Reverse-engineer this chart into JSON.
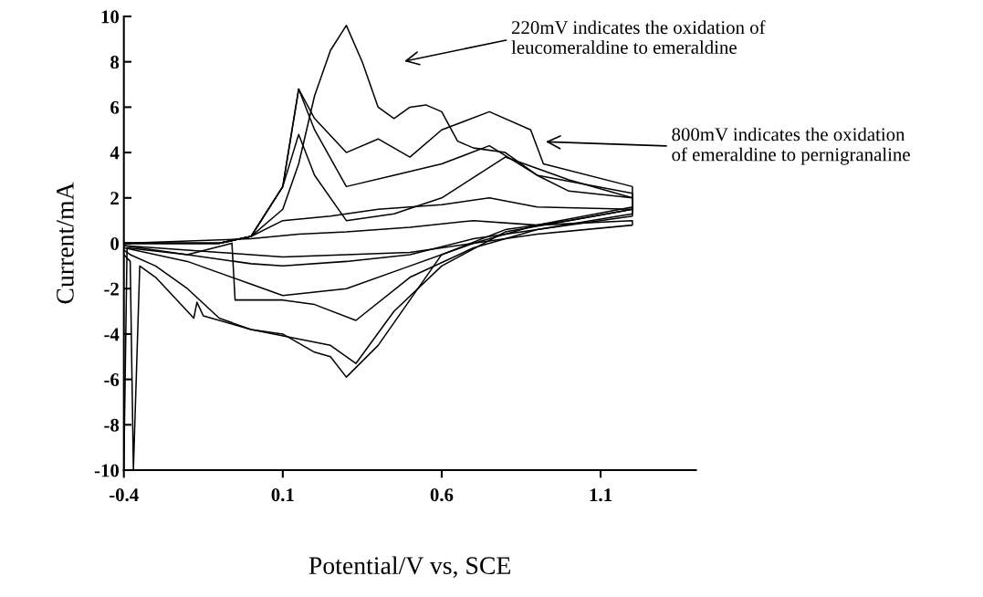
{
  "chart_data": {
    "type": "line",
    "xlabel": "Potential/V vs, SCE",
    "ylabel": "Current/mA",
    "xlim": [
      -0.4,
      1.4
    ],
    "ylim": [
      -10,
      10
    ],
    "xticks": [
      -0.4,
      0.1,
      0.6,
      1.1
    ],
    "yticks": [
      -10,
      -8,
      -6,
      -4,
      -2,
      0,
      2,
      4,
      6,
      8,
      10
    ],
    "grid": false,
    "marker": "none",
    "line_style": "solid",
    "annotations": [
      "220mV indicates the oxidation of\nleucomeraldine to emeraldine",
      "800mV indicates the oxidation\nof emeraldine to pernigranaline"
    ],
    "series": [
      {
        "color": "#000000",
        "x": [
          -0.4,
          -0.1,
          0.0,
          0.1,
          0.15,
          0.2,
          0.25,
          0.3,
          0.35,
          0.4,
          0.45,
          0.5,
          0.55,
          0.6,
          0.65,
          0.7,
          0.8,
          0.9,
          1.0,
          1.2,
          1.2,
          1.0,
          0.8,
          0.6,
          0.5,
          0.4,
          0.3,
          0.25,
          0.2,
          0.1,
          0.0,
          -0.1,
          -0.2,
          -0.3,
          -0.38,
          -0.4
        ],
        "values": [
          0,
          0,
          0.3,
          1.5,
          3.5,
          6.5,
          8.5,
          9.6,
          8,
          6,
          5.5,
          6,
          6.1,
          5.8,
          4.5,
          4.2,
          4,
          3,
          2.3,
          2,
          1.5,
          1,
          0.6,
          -0.5,
          -2.5,
          -4.5,
          -5.9,
          -5,
          -4.8,
          -4,
          -3.8,
          -3.3,
          -2,
          -1,
          -0.5,
          -0.3
        ]
      },
      {
        "color": "#000000",
        "x": [
          -0.4,
          -0.1,
          0.0,
          0.1,
          0.15,
          0.2,
          0.3,
          0.4,
          0.5,
          0.6,
          0.75,
          0.88,
          0.92,
          1.2,
          1.2,
          1.0,
          0.8,
          0.6,
          0.45,
          0.33,
          0.25,
          0.0,
          -0.15,
          -0.17,
          -0.18,
          -0.3,
          -0.35,
          -0.37,
          -0.38,
          -0.4
        ],
        "values": [
          0,
          0,
          0.3,
          2.5,
          6.8,
          5.5,
          4,
          4.6,
          3.8,
          5,
          5.8,
          5,
          3.5,
          2.5,
          1.5,
          1,
          0.5,
          -1,
          -3,
          -5.3,
          -4.5,
          -3.8,
          -3.2,
          -2.6,
          -3.3,
          -1.5,
          -1,
          -10,
          -0.8,
          -0.5
        ]
      },
      {
        "color": "#000000",
        "x": [
          -0.4,
          -0.1,
          0.0,
          0.1,
          0.15,
          0.2,
          0.3,
          0.45,
          0.6,
          0.8,
          1.0,
          1.2,
          1.2,
          0.9,
          0.7,
          0.5,
          0.33,
          0.2,
          0.1,
          -0.05,
          -0.06,
          -0.2,
          -0.39,
          -0.4
        ],
        "values": [
          0,
          0,
          0.3,
          2.5,
          4.8,
          3,
          1,
          1.3,
          2,
          3.8,
          2.8,
          2,
          1.3,
          0.6,
          -0.2,
          -1.5,
          -3.4,
          -2.7,
          -2.5,
          -2.5,
          0,
          -0.5,
          -0.2,
          -10
        ]
      },
      {
        "color": "#000000",
        "x": [
          -0.4,
          -0.1,
          0.0,
          0.1,
          0.15,
          0.2,
          0.3,
          0.45,
          0.6,
          0.75,
          0.9,
          1.2,
          1.2,
          0.9,
          0.7,
          0.5,
          0.3,
          0.1,
          0.0,
          -0.2,
          -0.4
        ],
        "values": [
          0,
          0,
          0.3,
          2.5,
          6.8,
          5,
          2.5,
          3,
          3.5,
          4.3,
          3,
          2.2,
          1.6,
          0.8,
          0,
          -1,
          -2,
          -2.3,
          -1.8,
          -0.8,
          -0.2
        ]
      },
      {
        "color": "#000000",
        "x": [
          -0.4,
          -0.1,
          0.0,
          0.1,
          0.25,
          0.4,
          0.6,
          0.75,
          0.9,
          1.2,
          1.2,
          0.9,
          0.7,
          0.5,
          0.3,
          0.1,
          0.0,
          -0.2,
          -0.4
        ],
        "values": [
          0,
          0,
          0.3,
          1,
          1.2,
          1.5,
          1.7,
          2,
          1.6,
          1.5,
          1.2,
          0.6,
          0.2,
          -0.5,
          -0.8,
          -1,
          -0.9,
          -0.5,
          -0.1
        ]
      },
      {
        "color": "#000000",
        "x": [
          -0.4,
          0.0,
          0.15,
          0.3,
          0.5,
          0.7,
          0.9,
          1.2,
          1.2,
          0.9,
          0.7,
          0.5,
          0.3,
          0.1,
          -0.1,
          -0.4
        ],
        "values": [
          0,
          0.2,
          0.4,
          0.5,
          0.7,
          1,
          0.8,
          1,
          0.8,
          0.4,
          0,
          -0.4,
          -0.5,
          -0.6,
          -0.4,
          -0.1
        ]
      }
    ]
  }
}
